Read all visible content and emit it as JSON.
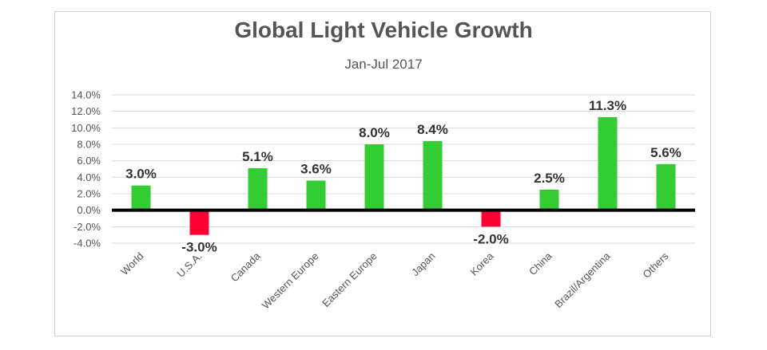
{
  "chart_data": {
    "type": "bar",
    "title": "Global Light Vehicle Growth",
    "subtitle": "Jan-Jul 2017",
    "categories": [
      "World",
      "U.S.A.",
      "Canada",
      "Western Europe",
      "Eastern Europe",
      "Japan",
      "Korea",
      "China",
      "Brazil/Argentina",
      "Others"
    ],
    "values": [
      3.0,
      -3.0,
      5.1,
      3.6,
      8.0,
      8.4,
      -2.0,
      2.5,
      11.3,
      5.6
    ],
    "data_labels": [
      "3.0%",
      "-3.0%",
      "5.1%",
      "3.6%",
      "8.0%",
      "8.4%",
      "-2.0%",
      "2.5%",
      "11.3%",
      "5.6%"
    ],
    "ylim": [
      -4,
      14
    ],
    "ytick_values": [
      14,
      12,
      10,
      8,
      6,
      4,
      2,
      0,
      -2,
      -4
    ],
    "ytick_labels": [
      "14.0%",
      "12.0%",
      "10.0%",
      "8.0%",
      "6.0%",
      "4.0%",
      "2.0%",
      "0.0%",
      "-2.0%",
      "-4.0%"
    ],
    "xlabel": "",
    "ylabel": "",
    "grid": true,
    "legend": "none",
    "colors": {
      "positive": "#33cc33",
      "negative": "#ff0033",
      "axis": "#000000",
      "grid": "#d9d9d9"
    }
  }
}
